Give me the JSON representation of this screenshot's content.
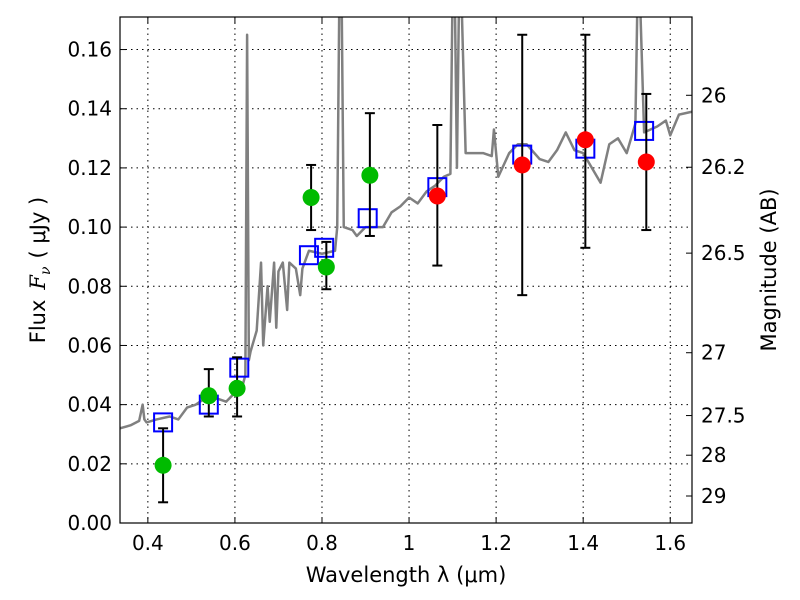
{
  "chart_data": {
    "type": "scatter",
    "xlabel": "Wavelength  λ (μm)",
    "ylabel": "Flux  F_ν  ( μJy )",
    "ylabel_parts": {
      "text": "Flux",
      "var": "F",
      "sub": "ν",
      "unit": "( μJy )"
    },
    "y2label": "Magnitude (AB)",
    "xlim": [
      0.336,
      1.65
    ],
    "ylim": [
      0,
      0.171
    ],
    "grid": true,
    "xticks": [
      0.4,
      0.6,
      0.8,
      1.0,
      1.2,
      1.4,
      1.6
    ],
    "xtick_labels": [
      "0.4",
      "0.6",
      "0.8",
      "1",
      "1.2",
      "1.4",
      "1.6"
    ],
    "yticks": [
      0,
      0.02,
      0.04,
      0.06,
      0.08,
      0.1,
      0.12,
      0.14,
      0.16
    ],
    "ytick_labels": [
      "0.00",
      "0.02",
      "0.04",
      "0.06",
      "0.08",
      "0.10",
      "0.12",
      "0.14",
      "0.16"
    ],
    "y2ticks": [
      26,
      26.2,
      26.5,
      27,
      27.5,
      28,
      29
    ],
    "y2tick_labels": [
      "26",
      "26.2",
      "26.5",
      "27",
      "27.5",
      "28",
      "29"
    ],
    "ab_zeropoint": 23.9,
    "colors": {
      "spectrum": "#808080",
      "green": "#00bb00",
      "red": "#ff0000",
      "model": "#0000ff",
      "error": "#000000"
    },
    "spectrum": {
      "name": "model spectrum",
      "x": [
        0.336,
        0.36,
        0.38,
        0.388,
        0.392,
        0.397,
        0.42,
        0.45,
        0.47,
        0.49,
        0.51,
        0.53,
        0.56,
        0.58,
        0.6,
        0.615,
        0.624,
        0.628,
        0.632,
        0.636,
        0.65,
        0.66,
        0.665,
        0.675,
        0.68,
        0.69,
        0.695,
        0.7,
        0.71,
        0.72,
        0.725,
        0.74,
        0.75,
        0.755,
        0.77,
        0.8,
        0.83,
        0.835,
        0.84,
        0.845,
        0.85,
        0.87,
        0.88,
        0.9,
        0.94,
        0.96,
        0.98,
        1.0,
        1.02,
        1.04,
        1.06,
        1.08,
        1.095,
        1.1,
        1.105,
        1.11,
        1.115,
        1.12,
        1.13,
        1.17,
        1.19,
        1.195,
        1.205,
        1.23,
        1.25,
        1.27,
        1.3,
        1.32,
        1.34,
        1.36,
        1.38,
        1.4,
        1.42,
        1.44,
        1.46,
        1.48,
        1.5,
        1.52,
        1.525,
        1.53,
        1.54,
        1.57,
        1.59,
        1.6,
        1.62,
        1.65
      ],
      "y": [
        0.032,
        0.033,
        0.0345,
        0.04,
        0.035,
        0.034,
        0.035,
        0.036,
        0.035,
        0.039,
        0.04,
        0.042,
        0.042,
        0.041,
        0.044,
        0.045,
        0.05,
        0.165,
        0.055,
        0.058,
        0.065,
        0.088,
        0.06,
        0.08,
        0.068,
        0.088,
        0.066,
        0.085,
        0.088,
        0.072,
        0.088,
        0.086,
        0.077,
        0.086,
        0.092,
        0.091,
        0.092,
        0.1,
        0.18,
        0.18,
        0.1,
        0.099,
        0.097,
        0.1,
        0.1,
        0.105,
        0.107,
        0.11,
        0.108,
        0.112,
        0.114,
        0.117,
        0.118,
        0.18,
        0.18,
        0.12,
        0.18,
        0.18,
        0.125,
        0.125,
        0.124,
        0.133,
        0.117,
        0.125,
        0.128,
        0.128,
        0.123,
        0.122,
        0.126,
        0.132,
        0.126,
        0.125,
        0.12,
        0.115,
        0.128,
        0.13,
        0.125,
        0.135,
        0.18,
        0.18,
        0.132,
        0.134,
        0.136,
        0.131,
        0.138,
        0.139
      ]
    },
    "series": [
      {
        "name": "green photometry",
        "marker": "circle",
        "x": [
          0.435,
          0.54,
          0.605,
          0.775,
          0.81,
          0.91
        ],
        "y": [
          0.0195,
          0.043,
          0.0455,
          0.11,
          0.0865,
          0.1175
        ],
        "ylo": [
          0.007,
          0.036,
          0.036,
          0.099,
          0.079,
          0.097
        ],
        "yhi": [
          0.032,
          0.052,
          0.056,
          0.121,
          0.095,
          0.1385
        ]
      },
      {
        "name": "red photometry",
        "marker": "circle",
        "x": [
          1.065,
          1.26,
          1.405,
          1.545
        ],
        "y": [
          0.1105,
          0.121,
          0.1295,
          0.122
        ],
        "ylo": [
          0.087,
          0.077,
          0.093,
          0.099
        ],
        "yhi": [
          0.1345,
          0.165,
          0.165,
          0.145
        ]
      },
      {
        "name": "model photometry",
        "marker": "square",
        "x": [
          0.435,
          0.54,
          0.61,
          0.77,
          0.805,
          0.905,
          1.065,
          1.26,
          1.405,
          1.54
        ],
        "y": [
          0.034,
          0.04,
          0.0525,
          0.0905,
          0.093,
          0.103,
          0.1135,
          0.1245,
          0.1265,
          0.1325
        ]
      }
    ]
  }
}
